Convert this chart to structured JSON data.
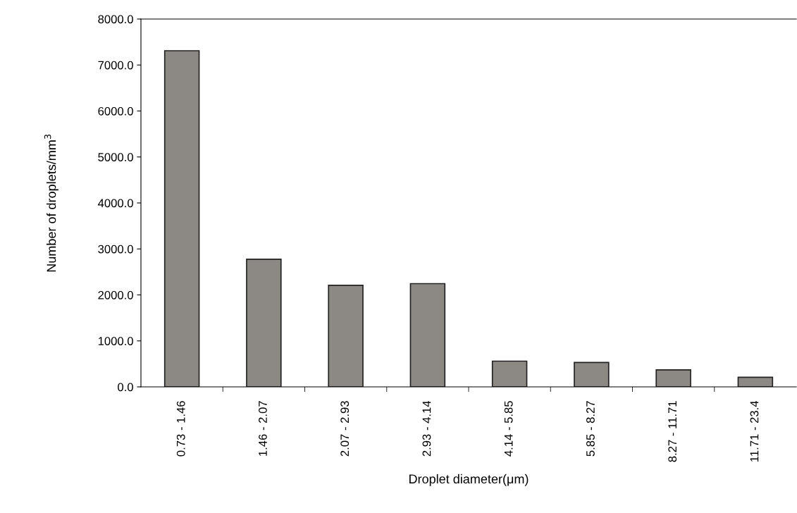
{
  "chart_data": {
    "type": "bar",
    "xlabel": "Droplet diameter(μm)",
    "ylabel": "Number of droplets/mm$^{3}$",
    "categories": [
      "0.73 - 1.46",
      "1.46 - 2.07",
      "2.07 - 2.93",
      "2.93 - 4.14",
      "4.14 - 5.85",
      "5.85 - 8.27",
      "8.27 - 11.71",
      "11.71 - 23.4"
    ],
    "values": [
      7310,
      2775,
      2210,
      2245,
      560,
      530,
      370,
      210
    ],
    "color": "#8c8884",
    "ylim": [
      0,
      8000
    ],
    "yticks": [
      {
        "value": 0,
        "label": "0.0"
      },
      {
        "value": 1000,
        "label": "1000.0"
      },
      {
        "value": 2000,
        "label": "2000.0"
      },
      {
        "value": 3000,
        "label": "3000.0"
      },
      {
        "value": 4000,
        "label": "4000.0"
      },
      {
        "value": 5000,
        "label": "5000.0"
      },
      {
        "value": 6000,
        "label": "6000.0"
      },
      {
        "value": 7000,
        "label": "7000.0"
      },
      {
        "value": 8000,
        "label": "8000.0"
      }
    ],
    "grid": false
  }
}
